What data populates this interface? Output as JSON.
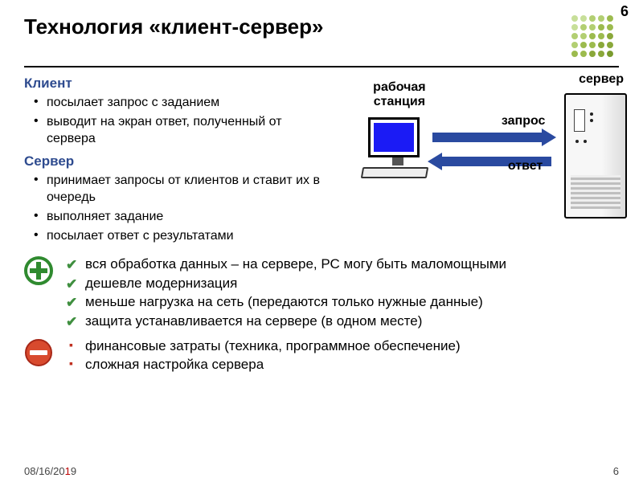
{
  "pageNumberTop": "6",
  "title": "Технология «клиент-сервер»",
  "decoration": {
    "dot_colors": [
      "#7a9b2e",
      "#8aa83a",
      "#9cbb4e",
      "#b2cf72",
      "#c7df99"
    ],
    "rows": 5,
    "cols": 5,
    "dot_r": 4,
    "spacing": 11
  },
  "client": {
    "heading": "Клиент",
    "items": [
      "посылает запрос с заданием",
      "выводит на экран ответ, полученный от сервера"
    ]
  },
  "server": {
    "heading": "Сервер",
    "items": [
      "принимает запросы от клиентов и ставит их в очередь",
      "выполняет задание",
      "посылает ответ с результатами"
    ]
  },
  "diagram": {
    "workstation_label": "рабочая станция",
    "server_label": "сервер",
    "request_label": "запрос",
    "response_label": "ответ",
    "screen_color": "#1b1bf5",
    "arrow_color": "#2a4aa0"
  },
  "pros": {
    "icon_colors": {
      "ring": "#2f8a2f",
      "fill": "#ffffff",
      "plus": "#2f8a2f"
    },
    "items": [
      "вся обработка данных – на сервере, РС могу быть маломощными",
      "дешевле модернизация",
      "меньше нагрузка на сеть (передаются только нужные данные)",
      "защита устанавливается на сервере (в одном месте)"
    ]
  },
  "cons": {
    "icon_colors": {
      "ring": "#c83222",
      "fill": "#ffffff",
      "bar": "#ffffff",
      "disc": "#d84a2e"
    },
    "items": [
      "финансовые затраты (техника, программное обеспечение)",
      "сложная настройка сервера"
    ]
  },
  "footer": {
    "date_prefix": "08/16/20",
    "date_highlight": "1",
    "date_suffix": "9",
    "page": "6"
  }
}
